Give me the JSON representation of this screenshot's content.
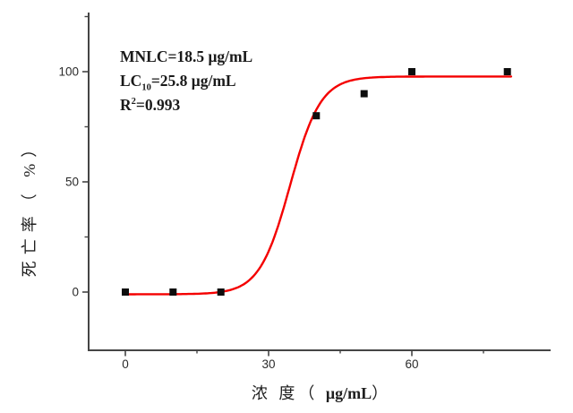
{
  "chart_data": {
    "type": "scatter",
    "title": "",
    "xlabel_cn": "浓 度（ ",
    "xlabel_unit": "μg/mL",
    "xlabel_close": "）",
    "ylabel": "死亡率（ %）",
    "xlim": [
      -8,
      89
    ],
    "ylim": [
      -26,
      127
    ],
    "grid": false,
    "legend": "none",
    "x_ticks": {
      "major": [
        0,
        30,
        60
      ],
      "minor": [
        15,
        45,
        75
      ]
    },
    "y_ticks": {
      "major": [
        0,
        50,
        100
      ],
      "minor": [
        25,
        75,
        125
      ]
    },
    "points": [
      {
        "x": 0,
        "y": 0
      },
      {
        "x": 10,
        "y": 0
      },
      {
        "x": 20,
        "y": 0
      },
      {
        "x": 40,
        "y": 80
      },
      {
        "x": 50,
        "y": 90
      },
      {
        "x": 60,
        "y": 100
      },
      {
        "x": 80,
        "y": 100
      }
    ],
    "fit_curve": {
      "model": "sigmoid",
      "bottom": -1,
      "top": 97.8,
      "midpoint": 34.5,
      "width": 3.2,
      "x_start": 0,
      "x_end": 80.8
    },
    "annotation": {
      "line1": "MNLC=18.5 μg/mL",
      "lc_prefix": "LC",
      "lc_sub": "10",
      "lc_rest": "=25.8 μg/mL",
      "r_prefix": "R",
      "r_sup": "2",
      "r_rest": "=0.993"
    },
    "colors": {
      "curve": "#f40000",
      "marker": "#0d0d0d",
      "axis": "#454545",
      "tick_label": "#2b2b2b"
    }
  }
}
